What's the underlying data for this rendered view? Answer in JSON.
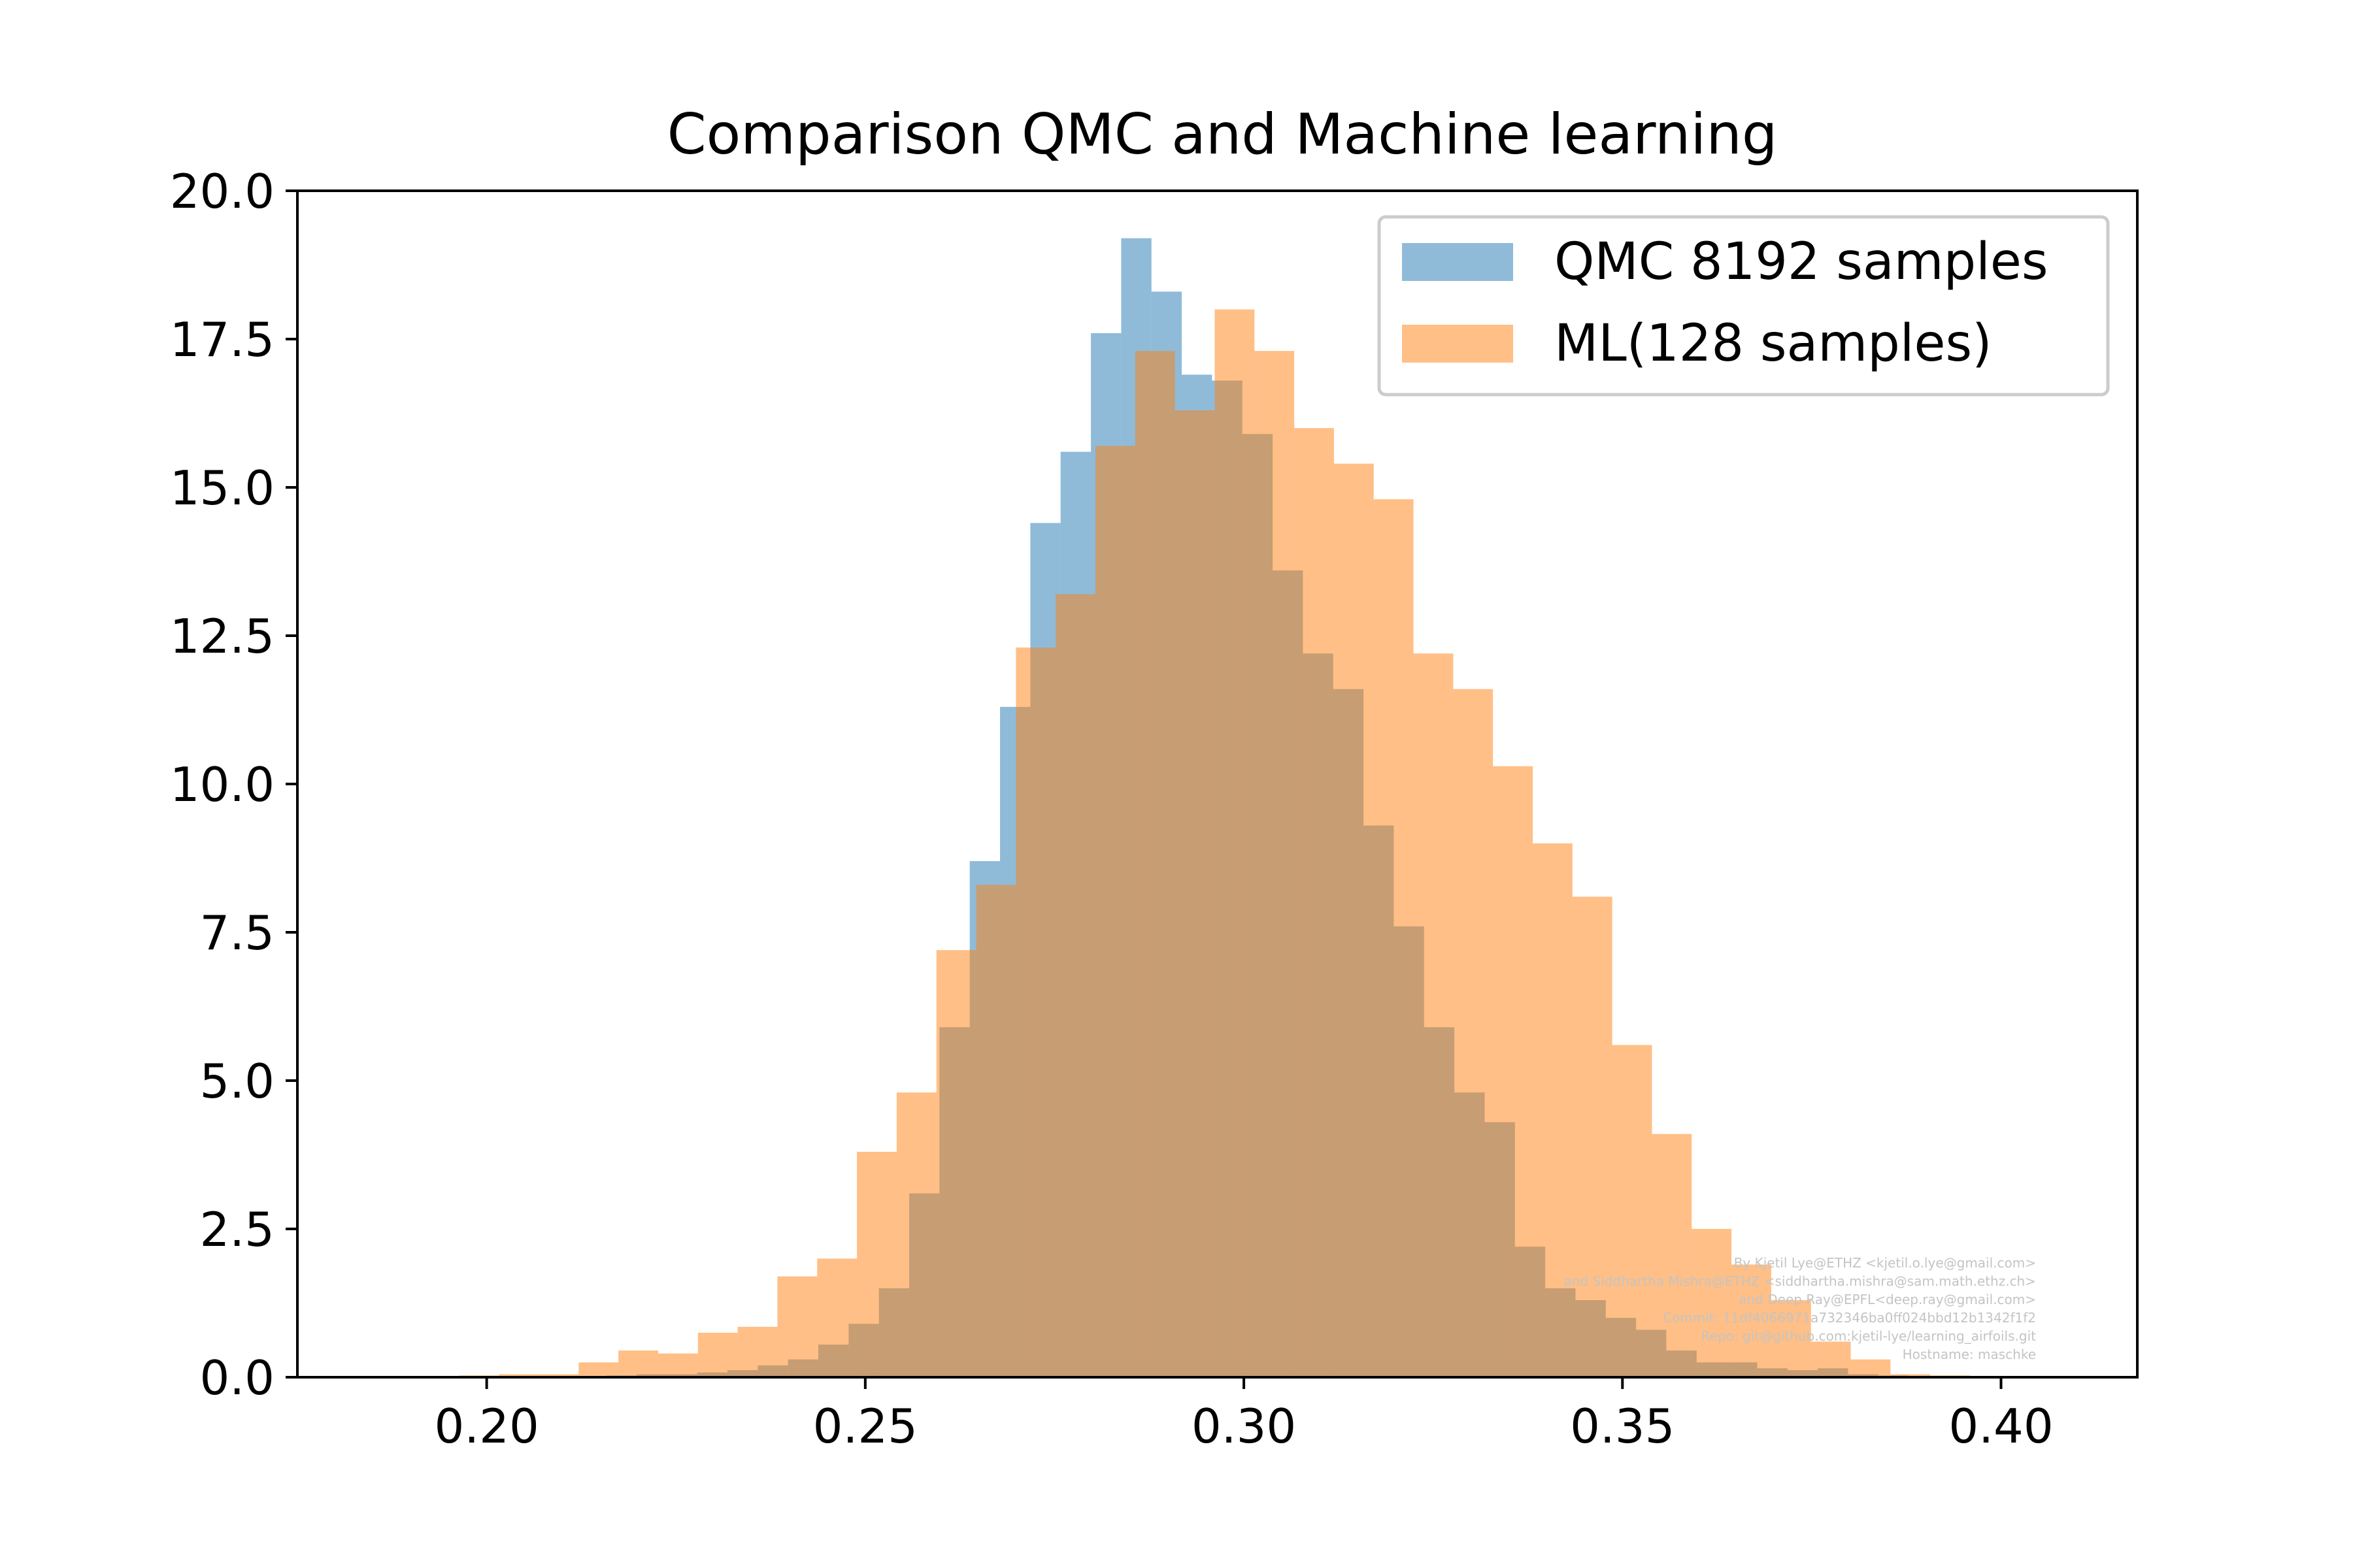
{
  "chart_data": {
    "type": "bar",
    "title": "Comparison QMC and Machine learning",
    "xlabel": "",
    "ylabel": "",
    "xlim": [
      0.175,
      0.418
    ],
    "ylim": [
      0,
      20
    ],
    "x_ticks": [
      "0.20",
      "0.25",
      "0.30",
      "0.35",
      "0.40"
    ],
    "y_ticks": [
      "0.0",
      "2.5",
      "5.0",
      "7.5",
      "10.0",
      "12.5",
      "15.0",
      "17.5",
      "20.0"
    ],
    "legend_position": "top-right",
    "grid": false,
    "series": [
      {
        "name": "QMC 8192 samples",
        "color": "#1f77b4",
        "opacity": 0.5,
        "bin_start": 0.2038,
        "bin_width": 0.004,
        "values": [
          0.02,
          0.02,
          0.02,
          0.03,
          0.05,
          0.05,
          0.08,
          0.12,
          0.2,
          0.3,
          0.55,
          0.9,
          1.5,
          3.1,
          5.9,
          8.7,
          11.3,
          14.4,
          15.6,
          17.6,
          19.2,
          18.3,
          16.9,
          16.8,
          15.9,
          13.6,
          12.2,
          11.6,
          9.3,
          7.6,
          5.9,
          4.8,
          4.3,
          2.2,
          1.5,
          1.3,
          1.0,
          0.8,
          0.45,
          0.25,
          0.25,
          0.15,
          0.12,
          0.15,
          0.05,
          0.03,
          0.02
        ]
      },
      {
        "name": "ML(128 samples)",
        "color": "#ff7f0e",
        "opacity": 0.5,
        "bin_start": 0.1964,
        "bin_width": 0.00525,
        "values": [
          0.03,
          0.05,
          0.05,
          0.25,
          0.45,
          0.4,
          0.75,
          0.85,
          1.7,
          2.0,
          3.8,
          4.8,
          7.2,
          8.3,
          12.3,
          13.2,
          15.7,
          17.3,
          16.3,
          18.0,
          17.3,
          16.0,
          15.4,
          14.8,
          12.2,
          11.6,
          10.3,
          9.0,
          8.1,
          5.6,
          4.1,
          2.5,
          1.9,
          1.3,
          0.6,
          0.3,
          0.05,
          0.03,
          0.02
        ]
      }
    ]
  },
  "watermark": {
    "lines": [
      "By Kjetil Lye@ETHZ <kjetil.o.lye@gmail.com>",
      "and Siddhartha Mishra@ETHZ <siddhartha.mishra@sam.math.ethz.ch>",
      "and Deep Ray@EPFL<deep.ray@gmail.com>",
      "Commit: 11df4066971a732346ba0ff024bbd12b1342f1f2",
      "Repo: git@github.com:kjetil-lye/learning_airfoils.git",
      "Hostname: maschke"
    ]
  }
}
